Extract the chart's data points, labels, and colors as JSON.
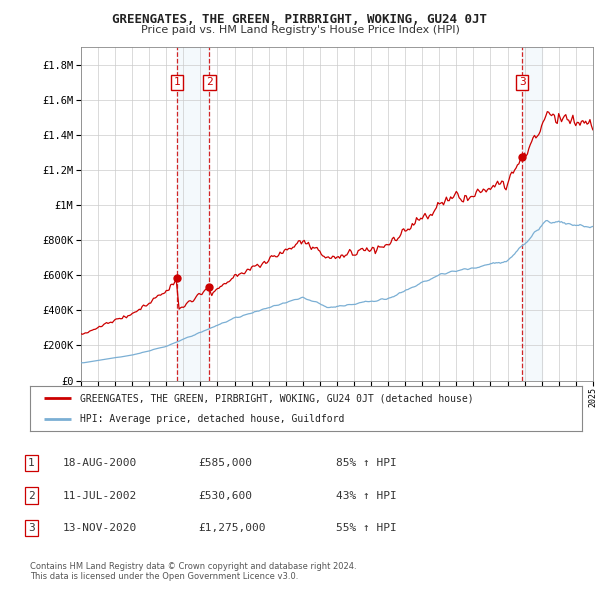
{
  "title": "GREENGATES, THE GREEN, PIRBRIGHT, WOKING, GU24 0JT",
  "subtitle": "Price paid vs. HM Land Registry's House Price Index (HPI)",
  "ylim": [
    0,
    1900000
  ],
  "yticks": [
    0,
    200000,
    400000,
    600000,
    800000,
    1000000,
    1200000,
    1400000,
    1600000,
    1800000
  ],
  "ytick_labels": [
    "£0",
    "£200K",
    "£400K",
    "£600K",
    "£800K",
    "£1M",
    "£1.2M",
    "£1.4M",
    "£1.6M",
    "£1.8M"
  ],
  "x_start_year": 1995,
  "x_end_year": 2025,
  "line1_color": "#cc0000",
  "line2_color": "#7bafd4",
  "sale_points": [
    {
      "year": 2000.63,
      "price": 585000,
      "label": "1"
    },
    {
      "year": 2002.53,
      "price": 530600,
      "label": "2"
    },
    {
      "year": 2020.87,
      "price": 1275000,
      "label": "3"
    }
  ],
  "legend_line1": "GREENGATES, THE GREEN, PIRBRIGHT, WOKING, GU24 0JT (detached house)",
  "legend_line2": "HPI: Average price, detached house, Guildford",
  "table_rows": [
    {
      "num": "1",
      "date": "18-AUG-2000",
      "price": "£585,000",
      "hpi": "85% ↑ HPI"
    },
    {
      "num": "2",
      "date": "11-JUL-2002",
      "price": "£530,600",
      "hpi": "43% ↑ HPI"
    },
    {
      "num": "3",
      "date": "13-NOV-2020",
      "price": "£1,275,000",
      "hpi": "55% ↑ HPI"
    }
  ],
  "footer": "Contains HM Land Registry data © Crown copyright and database right 2024.\nThis data is licensed under the Open Government Licence v3.0.",
  "background_color": "#ffffff",
  "plot_bg_color": "#ffffff",
  "grid_color": "#cccccc",
  "shade_color": "#d6e8f7"
}
